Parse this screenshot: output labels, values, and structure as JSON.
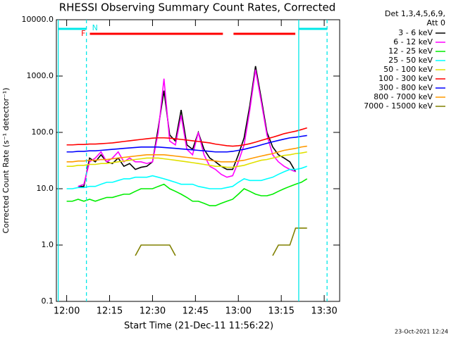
{
  "chart_data": {
    "type": "line",
    "title": "RHESSI Observing Summary Count Rates, Corrected",
    "xlabel": "Start Time (21-Dec-11 11:56:22)",
    "ylabel": "Corrected Count Rate (s⁻¹ detector⁻¹)",
    "footer": "23-Oct-2021 12:24",
    "legend_header": [
      "Det 1,3,4,5,6,9,",
      "Att 0"
    ],
    "log_y": true,
    "xlim": [
      -3.6,
      95.4
    ],
    "xticks": [
      {
        "value": 0,
        "label": "12:00"
      },
      {
        "value": 15,
        "label": "12:15"
      },
      {
        "value": 30,
        "label": "12:30"
      },
      {
        "value": 45,
        "label": "12:45"
      },
      {
        "value": 60,
        "label": "13:00"
      },
      {
        "value": 75,
        "label": "13:15"
      },
      {
        "value": 90,
        "label": "13:30"
      }
    ],
    "ylim": [
      0.1,
      10000
    ],
    "yticks": [
      {
        "value": 0.1,
        "label": "0.1"
      },
      {
        "value": 1,
        "label": "1.0"
      },
      {
        "value": 10,
        "label": "10.0"
      },
      {
        "value": 100,
        "label": "100.0"
      },
      {
        "value": 1000,
        "label": "1000.0"
      },
      {
        "value": 10000,
        "label": "10000.0"
      }
    ],
    "flare_label": "F",
    "flare_color": "#ff0000",
    "flare_intervals": [
      [
        8.1,
        54.6
      ],
      [
        58.3,
        79.9
      ]
    ],
    "night_label": "N",
    "night_color": "#00e8e8",
    "night_intervals": [
      [
        -2.95,
        6.9
      ],
      [
        81.1,
        91.0
      ]
    ],
    "x": [
      -2,
      0,
      2,
      4,
      6,
      8,
      10,
      12,
      14,
      16,
      18,
      20,
      22,
      24,
      26,
      28,
      30,
      32,
      34,
      36,
      38,
      40,
      42,
      44,
      46,
      48,
      50,
      52,
      54,
      56,
      58,
      60,
      62,
      64,
      66,
      68,
      70,
      72,
      74,
      76,
      78,
      80,
      82,
      84,
      86
    ],
    "series": [
      {
        "name": "3 - 6 keV",
        "color": "#000000",
        "values": [
          null,
          null,
          null,
          11,
          11,
          35,
          30,
          40,
          30,
          28,
          35,
          25,
          28,
          22,
          24,
          25,
          30,
          120,
          550,
          90,
          70,
          250,
          60,
          50,
          100,
          50,
          35,
          30,
          25,
          22,
          22,
          40,
          80,
          300,
          1500,
          400,
          100,
          55,
          40,
          35,
          30,
          20,
          null,
          null,
          null
        ]
      },
      {
        "name": "6 - 12 keV",
        "color": "#ff00ff",
        "values": [
          null,
          null,
          null,
          11,
          12,
          30,
          35,
          45,
          30,
          35,
          45,
          30,
          35,
          30,
          30,
          28,
          30,
          100,
          900,
          70,
          60,
          200,
          50,
          40,
          100,
          40,
          25,
          22,
          18,
          16,
          17,
          30,
          60,
          250,
          1300,
          350,
          90,
          40,
          30,
          25,
          22,
          20,
          null,
          null,
          null
        ]
      },
      {
        "name": "12 - 25 keV",
        "color": "#00ee00",
        "values": [
          null,
          6,
          6,
          6.5,
          6,
          6.5,
          6,
          6.5,
          7,
          7,
          7.5,
          8,
          8,
          9,
          10,
          10,
          10,
          11,
          12,
          10,
          9,
          8,
          7,
          6,
          6,
          5.5,
          5,
          5,
          5.5,
          6,
          6.5,
          8,
          10,
          9,
          8,
          7.5,
          7.5,
          8,
          9,
          10,
          11,
          12,
          13,
          15,
          null
        ]
      },
      {
        "name": "25 - 50 keV",
        "color": "#00ffff",
        "values": [
          null,
          10,
          10,
          10.5,
          10.5,
          11,
          11,
          12,
          13,
          13,
          14,
          15,
          15,
          16,
          16,
          16,
          17,
          16,
          15,
          14,
          13,
          12,
          12,
          12,
          11,
          10.5,
          10,
          10,
          10,
          10.5,
          11,
          13,
          15,
          14,
          14,
          14,
          15,
          16,
          18,
          20,
          22,
          22,
          23,
          25,
          null
        ]
      },
      {
        "name": "50 - 100 keV",
        "color": "#e0e000",
        "values": [
          null,
          25,
          25,
          26,
          26,
          27,
          27,
          28,
          28,
          29,
          30,
          31,
          32,
          33,
          34,
          35,
          35,
          35,
          34,
          33,
          32,
          31,
          30,
          29,
          28,
          27,
          26,
          25,
          25,
          24,
          24,
          25,
          26,
          28,
          30,
          32,
          33,
          35,
          37,
          39,
          40,
          42,
          43,
          45,
          null
        ]
      },
      {
        "name": "100 - 300 keV",
        "color": "#ff0000",
        "values": [
          null,
          60,
          60,
          61,
          61,
          62,
          62,
          63,
          64,
          65,
          67,
          69,
          71,
          73,
          75,
          77,
          79,
          80,
          80,
          79,
          77,
          75,
          73,
          71,
          69,
          67,
          65,
          62,
          60,
          58,
          57,
          58,
          60,
          63,
          67,
          72,
          77,
          82,
          88,
          95,
          100,
          105,
          112,
          120,
          null
        ]
      },
      {
        "name": "300 - 800 keV",
        "color": "#0000ff",
        "values": [
          null,
          45,
          45,
          46,
          46,
          47,
          47,
          48,
          49,
          50,
          51,
          52,
          53,
          54,
          55,
          55,
          55,
          55,
          54,
          53,
          52,
          51,
          50,
          49,
          48,
          47,
          46,
          45,
          45,
          45,
          46,
          48,
          50,
          53,
          56,
          60,
          64,
          68,
          72,
          76,
          80,
          82,
          85,
          88,
          null
        ]
      },
      {
        "name": "800 - 7000 keV",
        "color": "#ff9900",
        "values": [
          null,
          30,
          30,
          31,
          31,
          32,
          32,
          33,
          33,
          34,
          35,
          36,
          37,
          38,
          39,
          40,
          40,
          40,
          40,
          39,
          38,
          37,
          36,
          35,
          34,
          33,
          32,
          31,
          30,
          30,
          30,
          31,
          32,
          34,
          36,
          38,
          40,
          42,
          45,
          48,
          50,
          52,
          55,
          57,
          null
        ]
      },
      {
        "name": "7000 - 15000 keV",
        "color": "#808000",
        "values": [
          null,
          null,
          null,
          null,
          null,
          null,
          null,
          null,
          null,
          null,
          null,
          null,
          null,
          0.65,
          1.0,
          1.0,
          1.0,
          1.0,
          1.0,
          1.0,
          0.65,
          null,
          null,
          null,
          null,
          null,
          null,
          null,
          null,
          null,
          null,
          null,
          null,
          null,
          null,
          null,
          null,
          0.65,
          1.0,
          1.0,
          1.0,
          2.0,
          2.0,
          2.0,
          null
        ]
      }
    ]
  }
}
